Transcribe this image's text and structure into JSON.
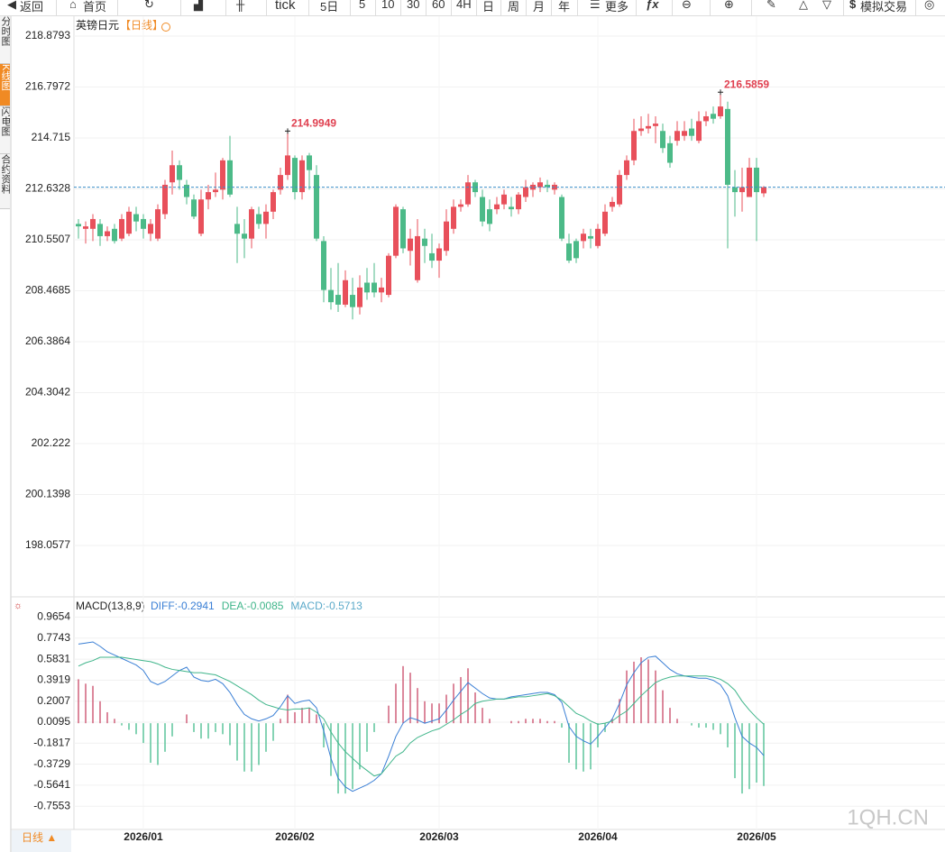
{
  "toolbar": [
    "返回",
    "首页",
    "tick",
    "5日",
    "5",
    "10",
    "30",
    "60",
    "4H",
    "日",
    "周",
    "月",
    "年",
    "更多",
    "模拟交易"
  ],
  "sidebar": [
    "分时图",
    "K线图",
    "闪电图",
    "合约资料"
  ],
  "watermark": "1QH.CN",
  "period_tab": "日线 ▲",
  "chart_data": [
    {
      "type": "candlestick",
      "title": "英镑日元",
      "subtitle": "【日线】",
      "categories": [
        null,
        null,
        null,
        null,
        null,
        null,
        null,
        null,
        null,
        "2026/01",
        null,
        null,
        null,
        null,
        null,
        null,
        null,
        null,
        null,
        null,
        null,
        null,
        null,
        null,
        null,
        null,
        null,
        null,
        null,
        null,
        "2026/02",
        null,
        null,
        null,
        null,
        null,
        null,
        null,
        null,
        null,
        null,
        null,
        null,
        null,
        null,
        null,
        null,
        null,
        null,
        null,
        "2026/03",
        null,
        null,
        null,
        null,
        null,
        null,
        null,
        null,
        null,
        null,
        null,
        null,
        null,
        null,
        null,
        null,
        null,
        null,
        null,
        null,
        null,
        "2026/04",
        null,
        null,
        null,
        null,
        null,
        null,
        null,
        null,
        null,
        null,
        null,
        null,
        null,
        null,
        null,
        null,
        null,
        null,
        null,
        null,
        null,
        "2026/05",
        null
      ],
      "open": [
        211.2,
        211.0,
        211.0,
        211.2,
        210.7,
        211.0,
        210.6,
        210.8,
        211.6,
        211.4,
        210.8,
        210.6,
        211.6,
        212.9,
        213.6,
        212.8,
        212.2,
        210.8,
        212.2,
        212.5,
        212.6,
        213.8,
        211.2,
        210.8,
        210.6,
        211.6,
        211.2,
        211.7,
        212.6,
        213.2,
        213.9,
        212.5,
        214.0,
        213.2,
        210.5,
        208.5,
        208.3,
        207.9,
        208.3,
        207.8,
        208.8,
        208.8,
        208.4,
        208.3,
        209.9,
        211.8,
        210.1,
        208.9,
        210.6,
        210.0,
        209.7,
        210.1,
        211.0,
        211.9,
        212.0,
        212.9,
        212.3,
        211.8,
        211.8,
        212.0,
        211.9,
        211.8,
        212.3,
        212.6,
        212.7,
        212.8,
        212.6,
        212.3,
        210.4,
        210.5,
        210.5,
        210.7,
        210.3,
        210.8,
        211.9,
        212.0,
        213.2,
        213.8,
        215.0,
        215.1,
        215.2,
        215.0,
        214.5,
        214.6,
        214.8,
        215.1,
        214.6,
        215.4,
        215.7,
        215.6,
        215.9,
        212.7,
        212.5,
        212.3,
        213.5,
        212.45
      ],
      "high": [
        211.4,
        211.3,
        211.6,
        211.4,
        211.1,
        211.2,
        211.6,
        211.9,
        211.9,
        211.6,
        211.4,
        212.0,
        213.0,
        214.2,
        213.8,
        213.0,
        212.4,
        212.6,
        212.8,
        213.3,
        213.9,
        214.8,
        211.9,
        211.4,
        211.9,
        211.9,
        212.0,
        212.6,
        213.5,
        214.9949,
        214.0,
        214.0,
        214.1,
        213.6,
        210.7,
        209.4,
        209.6,
        209.3,
        209.0,
        209.1,
        209.4,
        209.6,
        209.0,
        210.0,
        212.0,
        211.9,
        211.0,
        211.4,
        211.0,
        210.8,
        210.4,
        211.8,
        212.2,
        212.2,
        213.2,
        213.0,
        212.6,
        212.2,
        212.3,
        212.6,
        212.3,
        212.5,
        213.0,
        212.9,
        213.1,
        213.0,
        212.9,
        212.4,
        210.8,
        210.6,
        211.0,
        211.0,
        211.2,
        212.0,
        212.3,
        213.4,
        214.0,
        215.5,
        215.6,
        215.7,
        215.6,
        215.3,
        214.8,
        215.4,
        215.4,
        215.5,
        215.8,
        215.8,
        216.0,
        216.5859,
        216.2,
        213.4,
        213.5,
        213.9,
        213.9,
        212.75
      ],
      "low": [
        210.6,
        210.4,
        210.5,
        210.3,
        210.5,
        210.4,
        210.5,
        210.7,
        210.9,
        210.6,
        210.5,
        210.5,
        211.4,
        212.4,
        212.6,
        212.0,
        211.4,
        210.7,
        211.8,
        212.3,
        212.2,
        212.3,
        209.6,
        209.8,
        210.2,
        211.0,
        210.6,
        211.4,
        212.4,
        213.0,
        212.2,
        212.2,
        212.6,
        210.5,
        208.0,
        207.7,
        207.6,
        207.8,
        207.3,
        207.5,
        208.1,
        208.2,
        208.0,
        208.2,
        209.8,
        210.0,
        209.5,
        208.8,
        209.6,
        209.4,
        209.0,
        209.9,
        210.8,
        211.7,
        211.9,
        212.3,
        211.1,
        210.9,
        211.6,
        211.8,
        211.5,
        211.6,
        212.1,
        212.3,
        212.5,
        212.5,
        212.4,
        210.5,
        209.6,
        209.6,
        210.2,
        210.2,
        210.2,
        210.7,
        211.7,
        211.9,
        213.0,
        213.6,
        214.8,
        214.9,
        214.5,
        214.1,
        213.5,
        214.4,
        214.6,
        214.6,
        214.5,
        215.2,
        215.3,
        215.5,
        210.2,
        211.5,
        211.7,
        212.3,
        210.5,
        212.3
      ],
      "close": [
        211.1,
        211.1,
        211.4,
        210.7,
        210.9,
        210.5,
        211.4,
        211.7,
        211.3,
        211.0,
        211.2,
        211.8,
        212.8,
        213.6,
        213.0,
        212.3,
        211.5,
        212.2,
        212.5,
        212.6,
        213.8,
        212.4,
        210.8,
        210.6,
        211.8,
        211.2,
        211.7,
        212.5,
        213.2,
        214.0,
        212.5,
        213.8,
        213.4,
        210.6,
        208.5,
        208.0,
        207.9,
        208.9,
        207.8,
        208.6,
        208.4,
        208.4,
        208.6,
        209.9,
        211.9,
        210.2,
        210.6,
        210.7,
        210.3,
        209.7,
        210.2,
        211.3,
        211.9,
        212.0,
        212.9,
        212.5,
        211.3,
        211.2,
        212.0,
        212.4,
        211.8,
        212.4,
        212.7,
        212.8,
        212.9,
        212.7,
        212.8,
        210.6,
        209.7,
        209.8,
        210.8,
        210.6,
        211.0,
        211.7,
        212.1,
        213.2,
        213.8,
        215.0,
        215.1,
        215.2,
        215.3,
        214.3,
        213.7,
        215.0,
        215.0,
        214.8,
        215.4,
        215.6,
        215.5,
        216.0,
        212.8,
        212.5,
        212.7,
        213.5,
        212.5,
        212.7
      ],
      "up_color": "#e8505b",
      "down_color": "#4cba88",
      "ylim": [
        196.03,
        219.69
      ],
      "yticks": [
        198.0577,
        200.1398,
        202.222,
        204.3042,
        206.3864,
        208.4685,
        210.5507,
        212.6328,
        214.715,
        216.7972,
        218.8793
      ],
      "grid": true,
      "last_price_line": true,
      "annotated_highs": [
        29,
        89
      ]
    },
    {
      "type": "macd",
      "title": "MACD(13,8,9)",
      "series": [
        {
          "name": "DIFF",
          "label": "DIFF:-0.2941",
          "color": "#3a7fd5",
          "values": [
            0.72,
            0.73,
            0.74,
            0.7,
            0.65,
            0.62,
            0.59,
            0.56,
            0.53,
            0.48,
            0.38,
            0.35,
            0.38,
            0.43,
            0.48,
            0.51,
            0.42,
            0.39,
            0.38,
            0.4,
            0.36,
            0.28,
            0.17,
            0.08,
            0.04,
            0.02,
            0.04,
            0.07,
            0.15,
            0.25,
            0.18,
            0.2,
            0.21,
            0.14,
            -0.07,
            -0.32,
            -0.5,
            -0.58,
            -0.62,
            -0.59,
            -0.56,
            -0.52,
            -0.46,
            -0.3,
            -0.12,
            0.0,
            0.05,
            0.03,
            0.0,
            0.02,
            0.04,
            0.12,
            0.21,
            0.29,
            0.37,
            0.32,
            0.27,
            0.23,
            0.22,
            0.22,
            0.24,
            0.25,
            0.26,
            0.27,
            0.28,
            0.28,
            0.26,
            0.19,
            -0.03,
            -0.12,
            -0.16,
            -0.19,
            -0.12,
            -0.04,
            0.04,
            0.18,
            0.35,
            0.46,
            0.55,
            0.6,
            0.61,
            0.55,
            0.49,
            0.45,
            0.43,
            0.42,
            0.41,
            0.41,
            0.39,
            0.35,
            0.25,
            0.05,
            -0.12,
            -0.18,
            -0.22,
            -0.2941
          ]
        },
        {
          "name": "DEA",
          "label": "DEA:-0.0085",
          "color": "#3fb58a",
          "values": [
            0.52,
            0.55,
            0.57,
            0.6,
            0.6,
            0.6,
            0.6,
            0.59,
            0.58,
            0.57,
            0.56,
            0.54,
            0.51,
            0.49,
            0.48,
            0.47,
            0.46,
            0.46,
            0.45,
            0.44,
            0.41,
            0.38,
            0.34,
            0.3,
            0.26,
            0.21,
            0.17,
            0.15,
            0.13,
            0.12,
            0.13,
            0.13,
            0.14,
            0.1,
            0.04,
            -0.08,
            -0.18,
            -0.26,
            -0.32,
            -0.38,
            -0.43,
            -0.48,
            -0.46,
            -0.38,
            -0.3,
            -0.26,
            -0.18,
            -0.13,
            -0.1,
            -0.07,
            -0.05,
            -0.01,
            0.03,
            0.08,
            0.12,
            0.18,
            0.2,
            0.21,
            0.22,
            0.22,
            0.23,
            0.24,
            0.24,
            0.25,
            0.26,
            0.27,
            0.25,
            0.21,
            0.15,
            0.09,
            0.06,
            0.02,
            -0.01,
            0.0,
            0.02,
            0.07,
            0.11,
            0.18,
            0.25,
            0.31,
            0.37,
            0.4,
            0.42,
            0.43,
            0.43,
            0.43,
            0.43,
            0.43,
            0.42,
            0.4,
            0.36,
            0.3,
            0.2,
            0.12,
            0.05,
            -0.0085
          ]
        },
        {
          "name": "MACD",
          "label": "MACD:-0.5713",
          "color": "#5aa9c9",
          "up_color": "#d0607a",
          "down_color": "#5cc49a",
          "values": [
            0.4,
            0.36,
            0.34,
            0.2,
            0.1,
            0.04,
            -0.02,
            -0.06,
            -0.1,
            -0.18,
            -0.36,
            -0.38,
            -0.26,
            -0.12,
            0.0,
            0.08,
            -0.08,
            -0.14,
            -0.14,
            -0.08,
            -0.1,
            -0.2,
            -0.34,
            -0.44,
            -0.44,
            -0.38,
            -0.26,
            -0.16,
            0.04,
            0.26,
            0.1,
            0.14,
            0.14,
            0.08,
            -0.22,
            -0.48,
            -0.64,
            -0.64,
            -0.6,
            -0.42,
            -0.26,
            -0.08,
            0.0,
            0.16,
            0.36,
            0.52,
            0.46,
            0.32,
            0.2,
            0.18,
            0.18,
            0.26,
            0.36,
            0.42,
            0.5,
            0.28,
            0.14,
            0.04,
            0.0,
            0.0,
            0.02,
            0.02,
            0.04,
            0.04,
            0.04,
            0.02,
            0.02,
            -0.04,
            -0.36,
            -0.42,
            -0.44,
            -0.42,
            -0.22,
            -0.08,
            0.04,
            0.22,
            0.48,
            0.56,
            0.6,
            0.58,
            0.48,
            0.3,
            0.14,
            0.04,
            0.0,
            -0.02,
            -0.04,
            -0.04,
            -0.06,
            -0.1,
            -0.22,
            -0.5,
            -0.64,
            -0.6,
            -0.54,
            -0.5713
          ]
        }
      ],
      "ylim": [
        -0.967,
        1.1255
      ],
      "yticks": [
        -0.7553,
        -0.5641,
        -0.3729,
        -0.1817,
        0.0095,
        0.2007,
        0.3919,
        0.5831,
        0.7743,
        0.9654
      ],
      "grid": true
    }
  ]
}
